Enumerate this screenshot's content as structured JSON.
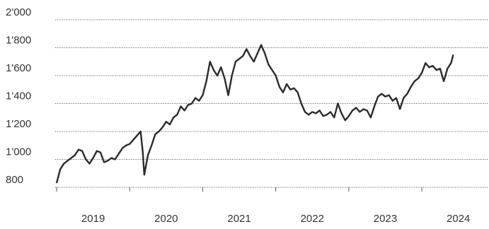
{
  "chart_data": {
    "type": "line",
    "color": "#2b2b2b",
    "grid": true,
    "ylim": [
      800,
      2000
    ],
    "yticks": [
      800,
      {
        "value": 1000,
        "label": "1'000"
      },
      {
        "value": 1200,
        "label": "1'200"
      },
      {
        "value": 1400,
        "label": "1'400"
      },
      {
        "value": 1600,
        "label": "1'600"
      },
      {
        "value": 1800,
        "label": "1'800"
      },
      {
        "value": 2000,
        "label": "2'000"
      }
    ],
    "xlim": [
      2019,
      2024.9
    ],
    "xticks": [
      {
        "value": 2019.5,
        "label": "2019"
      },
      {
        "value": 2020.5,
        "label": "2020"
      },
      {
        "value": 2021.5,
        "label": "2021"
      },
      {
        "value": 2022.5,
        "label": "2022"
      },
      {
        "value": 2023.5,
        "label": "2023"
      },
      {
        "value": 2024.5,
        "label": "2024"
      }
    ],
    "xminorticks": [
      2019,
      2020,
      2021,
      2022,
      2023,
      2024
    ],
    "x": [
      2019.0,
      2019.05,
      2019.1,
      2019.15,
      2019.2,
      2019.25,
      2019.3,
      2019.35,
      2019.4,
      2019.45,
      2019.5,
      2019.55,
      2019.6,
      2019.65,
      2019.7,
      2019.75,
      2019.8,
      2019.85,
      2019.9,
      2019.95,
      2020.0,
      2020.05,
      2020.1,
      2020.15,
      2020.18,
      2020.2,
      2020.25,
      2020.3,
      2020.35,
      2020.4,
      2020.45,
      2020.5,
      2020.55,
      2020.6,
      2020.65,
      2020.7,
      2020.75,
      2020.8,
      2020.85,
      2020.9,
      2020.95,
      2021.0,
      2021.05,
      2021.1,
      2021.15,
      2021.2,
      2021.25,
      2021.3,
      2021.35,
      2021.4,
      2021.45,
      2021.5,
      2021.55,
      2021.6,
      2021.65,
      2021.7,
      2021.75,
      2021.8,
      2021.85,
      2021.9,
      2021.95,
      2022.0,
      2022.05,
      2022.1,
      2022.15,
      2022.2,
      2022.25,
      2022.3,
      2022.35,
      2022.4,
      2022.45,
      2022.5,
      2022.55,
      2022.6,
      2022.65,
      2022.7,
      2022.75,
      2022.8,
      2022.85,
      2022.9,
      2022.95,
      2023.0,
      2023.05,
      2023.1,
      2023.15,
      2023.2,
      2023.25,
      2023.3,
      2023.35,
      2023.4,
      2023.45,
      2023.5,
      2023.55,
      2023.6,
      2023.65,
      2023.7,
      2023.75,
      2023.8,
      2023.85,
      2023.9,
      2023.95,
      2024.0,
      2024.05,
      2024.1,
      2024.15,
      2024.2,
      2024.25,
      2024.3,
      2024.35,
      2024.4,
      2024.43
    ],
    "values": [
      830,
      930,
      970,
      990,
      1010,
      1030,
      1070,
      1060,
      1000,
      970,
      1010,
      1060,
      1050,
      980,
      990,
      1010,
      1000,
      1040,
      1080,
      1100,
      1110,
      1140,
      1170,
      1200,
      1050,
      890,
      1030,
      1100,
      1180,
      1200,
      1230,
      1270,
      1250,
      1300,
      1320,
      1380,
      1350,
      1390,
      1400,
      1440,
      1420,
      1460,
      1560,
      1700,
      1640,
      1600,
      1660,
      1580,
      1460,
      1600,
      1700,
      1720,
      1740,
      1790,
      1740,
      1700,
      1760,
      1820,
      1760,
      1680,
      1640,
      1600,
      1520,
      1480,
      1540,
      1500,
      1510,
      1480,
      1400,
      1340,
      1320,
      1340,
      1330,
      1350,
      1310,
      1320,
      1340,
      1300,
      1400,
      1330,
      1280,
      1310,
      1350,
      1370,
      1340,
      1360,
      1350,
      1300,
      1380,
      1450,
      1470,
      1450,
      1460,
      1420,
      1440,
      1360,
      1440,
      1470,
      1520,
      1560,
      1580,
      1620,
      1690,
      1660,
      1670,
      1640,
      1650,
      1560,
      1650,
      1690,
      1750
    ]
  }
}
